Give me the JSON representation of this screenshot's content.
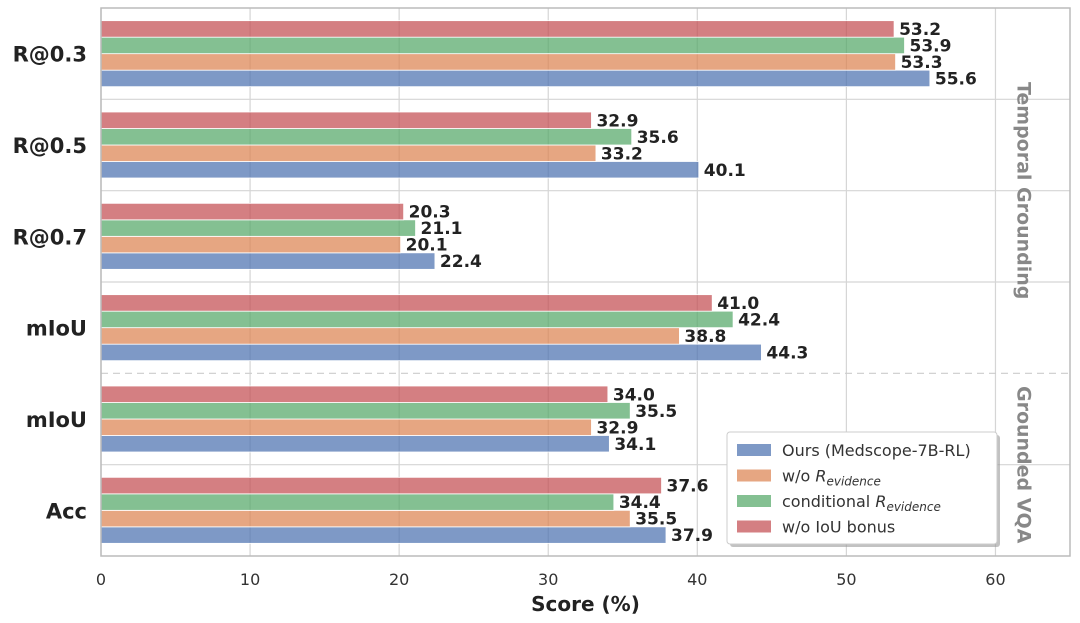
{
  "chart_data": {
    "type": "bar",
    "orientation": "horizontal",
    "xlabel": "Score (%)",
    "xlim": [
      0,
      65
    ],
    "xticks": [
      0,
      10,
      20,
      30,
      40,
      50,
      60
    ],
    "grid": true,
    "legend_position": "bottom-right",
    "categories": [
      "R@0.3",
      "R@0.5",
      "R@0.7",
      "mIoU",
      "mIoU",
      "Acc"
    ],
    "sections": [
      {
        "label": "Temporal Grounding",
        "categories": [
          0,
          1,
          2,
          3
        ]
      },
      {
        "label": "Grounded VQA",
        "categories": [
          4,
          5
        ]
      }
    ],
    "series": [
      {
        "name": "Ours (Medscope-7B-RL)",
        "legend_base": "Ours (Medscope-7B-RL)",
        "legend_sub": "",
        "color": "#4c72b0",
        "values": [
          55.6,
          40.1,
          22.4,
          44.3,
          34.1,
          37.9
        ]
      },
      {
        "name": "w/o R_evidence",
        "legend_base": "w/o R",
        "legend_sub": "evidence",
        "color": "#dd8452",
        "values": [
          53.3,
          33.2,
          20.1,
          38.8,
          32.9,
          35.5
        ]
      },
      {
        "name": "conditional R_evidence",
        "legend_base": "conditional R",
        "legend_sub": "evidence",
        "color": "#55a868",
        "values": [
          53.9,
          35.6,
          21.1,
          42.4,
          35.5,
          34.4
        ]
      },
      {
        "name": "w/o IoU bonus",
        "legend_base": "w/o IoU bonus",
        "legend_sub": "",
        "color": "#c44e52",
        "values": [
          53.2,
          32.9,
          20.3,
          41.0,
          34.0,
          37.6
        ]
      }
    ]
  }
}
